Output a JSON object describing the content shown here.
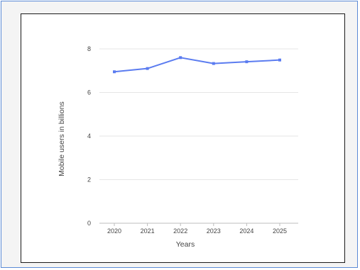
{
  "chart_data": {
    "type": "line",
    "title": "",
    "xlabel": "Years",
    "ylabel": "Mobile users in billions",
    "categories": [
      "2020",
      "2021",
      "2022",
      "2023",
      "2024",
      "2025"
    ],
    "series": [
      {
        "values": [
          6.95,
          7.1,
          7.6,
          7.33,
          7.41,
          7.49
        ]
      }
    ],
    "ylim": [
      0,
      8
    ],
    "yticks": [
      "0",
      "2",
      "4",
      "6",
      "8"
    ],
    "grid": true,
    "legend": "none",
    "colors": {
      "line": "#5b7cf0",
      "grid": "#e6e6e6",
      "axis": "#bdbdbd"
    }
  }
}
